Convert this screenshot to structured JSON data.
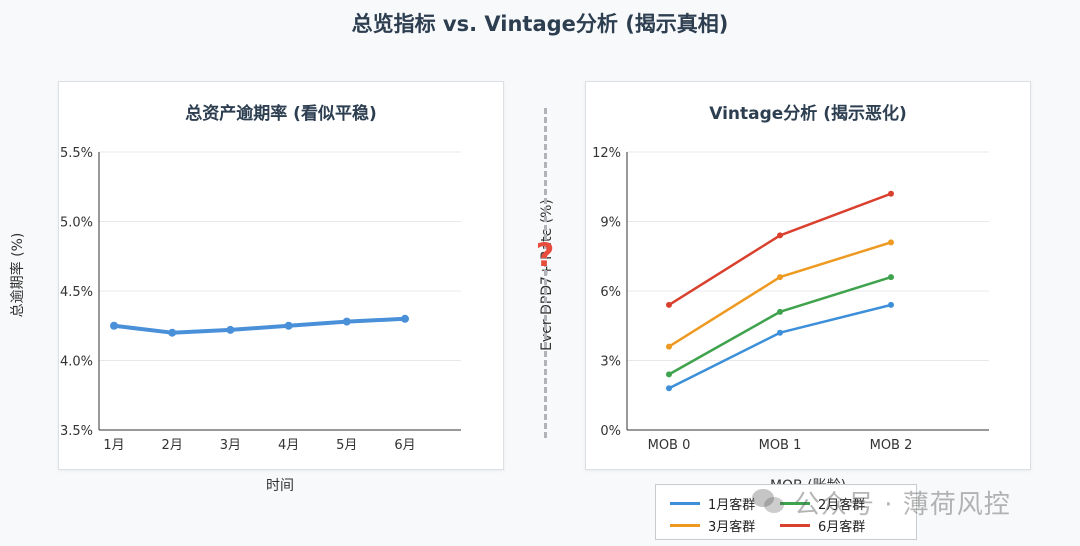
{
  "page": {
    "title": "总览指标 vs. Vintage分析 (揭示真相)",
    "question_mark": "?"
  },
  "watermark": {
    "icon": "wechat-icon",
    "text": "公众号 · 薄荷风控"
  },
  "chart_data": [
    {
      "type": "line",
      "title": "总资产逾期率 (看似平稳)",
      "xlabel": "时间",
      "ylabel": "总逾期率 (%)",
      "categories": [
        "1月",
        "2月",
        "3月",
        "4月",
        "5月",
        "6月"
      ],
      "ylim": [
        3.5,
        5.5
      ],
      "yticks": [
        3.5,
        4.0,
        4.5,
        5.0,
        5.5
      ],
      "ytick_labels": [
        "3.5%",
        "4.0%",
        "4.5%",
        "5.0%",
        "5.5%"
      ],
      "grid": true,
      "series": [
        {
          "name": "",
          "color": "#4a90d9",
          "values": [
            4.25,
            4.2,
            4.22,
            4.25,
            4.28,
            4.3
          ]
        }
      ]
    },
    {
      "type": "line",
      "title": "Vintage分析 (揭示恶化)",
      "xlabel": "MOB (账龄)",
      "ylabel": "Ever DPD7+ Rate (%)",
      "categories": [
        "MOB 0",
        "MOB 1",
        "MOB 2"
      ],
      "ylim": [
        0,
        12
      ],
      "yticks": [
        0,
        3,
        6,
        9,
        12
      ],
      "ytick_labels": [
        "0%",
        "3%",
        "6%",
        "9%",
        "12%"
      ],
      "grid": true,
      "legend_position": "bottom-right",
      "series": [
        {
          "name": "1月客群",
          "color": "#3d8fd9",
          "values": [
            1.8,
            4.2,
            5.4
          ]
        },
        {
          "name": "2月客群",
          "color": "#3fa34d",
          "values": [
            2.4,
            5.1,
            6.6
          ]
        },
        {
          "name": "3月客群",
          "color": "#ee9a22",
          "values": [
            3.6,
            6.6,
            8.1
          ]
        },
        {
          "name": "6月客群",
          "color": "#d9412e",
          "values": [
            5.4,
            8.4,
            10.2
          ]
        }
      ]
    }
  ]
}
